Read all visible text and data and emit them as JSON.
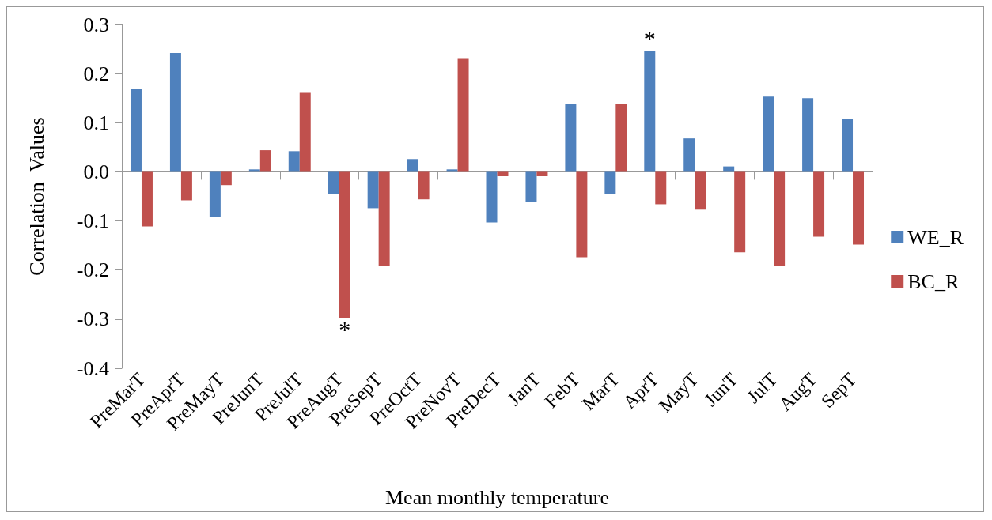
{
  "chart_data": {
    "type": "bar",
    "xlabel": "Mean monthly temperature",
    "ylabel": "Correlation  Values",
    "categories": [
      "PreMarT",
      "PreAprT",
      "PreMayT",
      "PreJunT",
      "PreJulT",
      "PreAugT",
      "PreSepT",
      "PreOctT",
      "PreNovT",
      "PreDecT",
      "JanT",
      "FebT",
      "MarT",
      "AprT",
      "MayT",
      "JunT",
      "JulT",
      "AugT",
      "SepT"
    ],
    "series": [
      {
        "name": "WE_R",
        "color": "#4f81bd",
        "values": [
          0.169,
          0.242,
          -0.091,
          0.005,
          0.042,
          -0.046,
          -0.074,
          0.026,
          0.005,
          -0.103,
          -0.062,
          0.139,
          -0.046,
          0.247,
          0.068,
          0.011,
          0.153,
          0.15,
          0.108
        ]
      },
      {
        "name": "BC_R",
        "color": "#c0504d",
        "values": [
          -0.111,
          -0.058,
          -0.027,
          0.044,
          0.161,
          -0.297,
          -0.191,
          -0.056,
          0.23,
          -0.009,
          -0.009,
          -0.174,
          0.138,
          -0.066,
          -0.077,
          -0.164,
          -0.191,
          -0.132,
          -0.148
        ]
      }
    ],
    "ylim": [
      -0.4,
      0.3
    ],
    "yticks": [
      -0.4,
      -0.3,
      -0.2,
      -0.1,
      {
        "value": 0,
        "label": "0.0"
      },
      0.1,
      0.2,
      0.3
    ],
    "annotations": [
      {
        "text": "*",
        "x": "PreAugT",
        "y": -0.297
      },
      {
        "text": "*",
        "x": "AprT",
        "y": 0.247
      }
    ],
    "legend": "right"
  }
}
